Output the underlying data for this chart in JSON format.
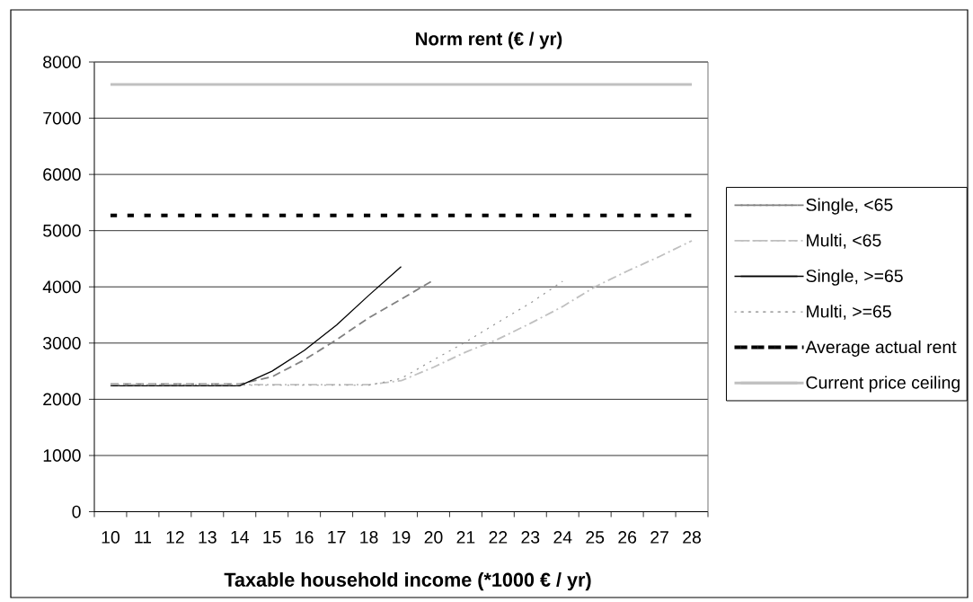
{
  "chart_data": {
    "type": "line",
    "title": "Norm rent (€ / yr)",
    "xlabel": "Taxable household income (*1000 € / yr)",
    "categories": [
      "10",
      "11",
      "12",
      "13",
      "14",
      "15",
      "16",
      "17",
      "18",
      "19",
      "20",
      "21",
      "22",
      "23",
      "24",
      "25",
      "26",
      "27",
      "28"
    ],
    "ylim": [
      0,
      8000
    ],
    "yticks": [
      0,
      1000,
      2000,
      3000,
      4000,
      5000,
      6000,
      7000,
      8000
    ],
    "grid": "y",
    "legend": "right",
    "marker": "none",
    "series": [
      {
        "name": "Single, <65",
        "color": "#808080",
        "line_style": "dashed",
        "values": [
          2270,
          2270,
          2270,
          2270,
          2270,
          2400,
          2700,
          3060,
          3450,
          3780,
          4120,
          null,
          null,
          null,
          null,
          null,
          null,
          null,
          null
        ]
      },
      {
        "name": "Multi, <65",
        "color": "#c0c0c0",
        "line_style": "dashdot",
        "values": [
          2260,
          2260,
          2260,
          2260,
          2260,
          2260,
          2260,
          2260,
          2260,
          2330,
          2570,
          2840,
          3070,
          3350,
          3650,
          4000,
          4280,
          4540,
          4820
        ]
      },
      {
        "name": "Single, >=65",
        "color": "#000000",
        "line_style": "solid",
        "values": [
          2240,
          2240,
          2240,
          2240,
          2240,
          2500,
          2870,
          3320,
          3850,
          4360,
          null,
          null,
          null,
          null,
          null,
          null,
          null,
          null,
          null
        ]
      },
      {
        "name": "Multi, >=65",
        "color": "#969696",
        "line_style": "dotted",
        "values": [
          2250,
          2250,
          2250,
          2250,
          2250,
          2250,
          2250,
          2250,
          2250,
          2370,
          2700,
          3020,
          3370,
          3710,
          4100,
          null,
          null,
          null,
          null
        ]
      },
      {
        "name": "Average actual rent",
        "color": "#000000",
        "line_style": "dotted",
        "values": [
          5270,
          5270,
          5270,
          5270,
          5270,
          5270,
          5270,
          5270,
          5270,
          5270,
          5270,
          5270,
          5270,
          5270,
          5270,
          5270,
          5270,
          5270,
          5270
        ]
      },
      {
        "name": "Current price ceiling",
        "color": "#c0c0c0",
        "line_style": "solid",
        "values": [
          7600,
          7600,
          7600,
          7600,
          7600,
          7600,
          7600,
          7600,
          7600,
          7600,
          7600,
          7600,
          7600,
          7600,
          7600,
          7600,
          7600,
          7600,
          7600
        ]
      }
    ]
  }
}
